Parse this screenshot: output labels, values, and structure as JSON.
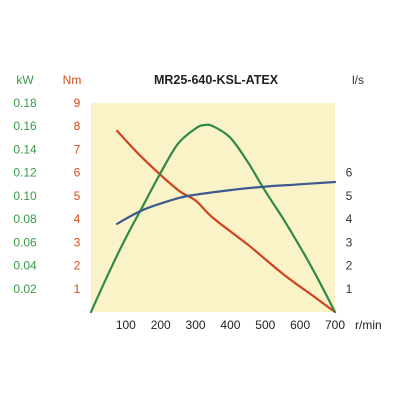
{
  "chart_data": {
    "type": "line",
    "title": "MR25-640-KSL-ATEX",
    "x_unit": "r/min",
    "xlim": [
      0,
      700
    ],
    "x_ticks": [
      "100",
      "200",
      "300",
      "400",
      "500",
      "600",
      "700"
    ],
    "x_tick_values": [
      100,
      200,
      300,
      400,
      500,
      600,
      700
    ],
    "axes": {
      "power": {
        "unit": "kW",
        "lim": [
          0,
          0.18
        ],
        "ticks": [
          "0.02",
          "0.04",
          "0.06",
          "0.08",
          "0.10",
          "0.12",
          "0.14",
          "0.16",
          "0.18"
        ],
        "tick_values": [
          0.02,
          0.04,
          0.06,
          0.08,
          0.1,
          0.12,
          0.14,
          0.16,
          0.18
        ],
        "color": "#3a9a4a"
      },
      "torque": {
        "unit": "Nm",
        "lim": [
          0,
          9
        ],
        "ticks": [
          "1",
          "2",
          "3",
          "4",
          "5",
          "6",
          "7",
          "8",
          "9"
        ],
        "tick_values": [
          1,
          2,
          3,
          4,
          5,
          6,
          7,
          8,
          9
        ],
        "color": "#d84a1a"
      },
      "flow": {
        "unit": "l/s",
        "lim": [
          0,
          9
        ],
        "ticks": [
          "1",
          "2",
          "3",
          "4",
          "5",
          "6"
        ],
        "tick_values": [
          1,
          2,
          3,
          4,
          5,
          6
        ],
        "color": "#333333"
      }
    },
    "series": [
      {
        "axis": "torque",
        "color": "#d0421e",
        "x": [
          75,
          150,
          250,
          300,
          350,
          450,
          550,
          650,
          700
        ],
        "y": [
          7.8,
          6.6,
          5.25,
          4.8,
          4.05,
          2.9,
          1.65,
          0.55,
          0.0
        ]
      },
      {
        "axis": "power",
        "color": "#2f8a4a",
        "x": [
          0,
          50,
          100,
          150,
          200,
          250,
          300,
          325,
          350,
          400,
          450,
          500,
          550,
          600,
          650,
          700
        ],
        "y": [
          0.0,
          0.033,
          0.064,
          0.092,
          0.12,
          0.145,
          0.158,
          0.161,
          0.16,
          0.15,
          0.129,
          0.104,
          0.081,
          0.056,
          0.029,
          0.0
        ]
      },
      {
        "axis": "flow",
        "color": "#3e5a8c",
        "x": [
          75,
          150,
          250,
          300,
          400,
          500,
          600,
          700
        ],
        "y": [
          3.8,
          4.4,
          4.9,
          5.05,
          5.25,
          5.4,
          5.5,
          5.6
        ]
      }
    ],
    "grid": false,
    "legend": "none",
    "plot_background": "#faf3c8"
  }
}
